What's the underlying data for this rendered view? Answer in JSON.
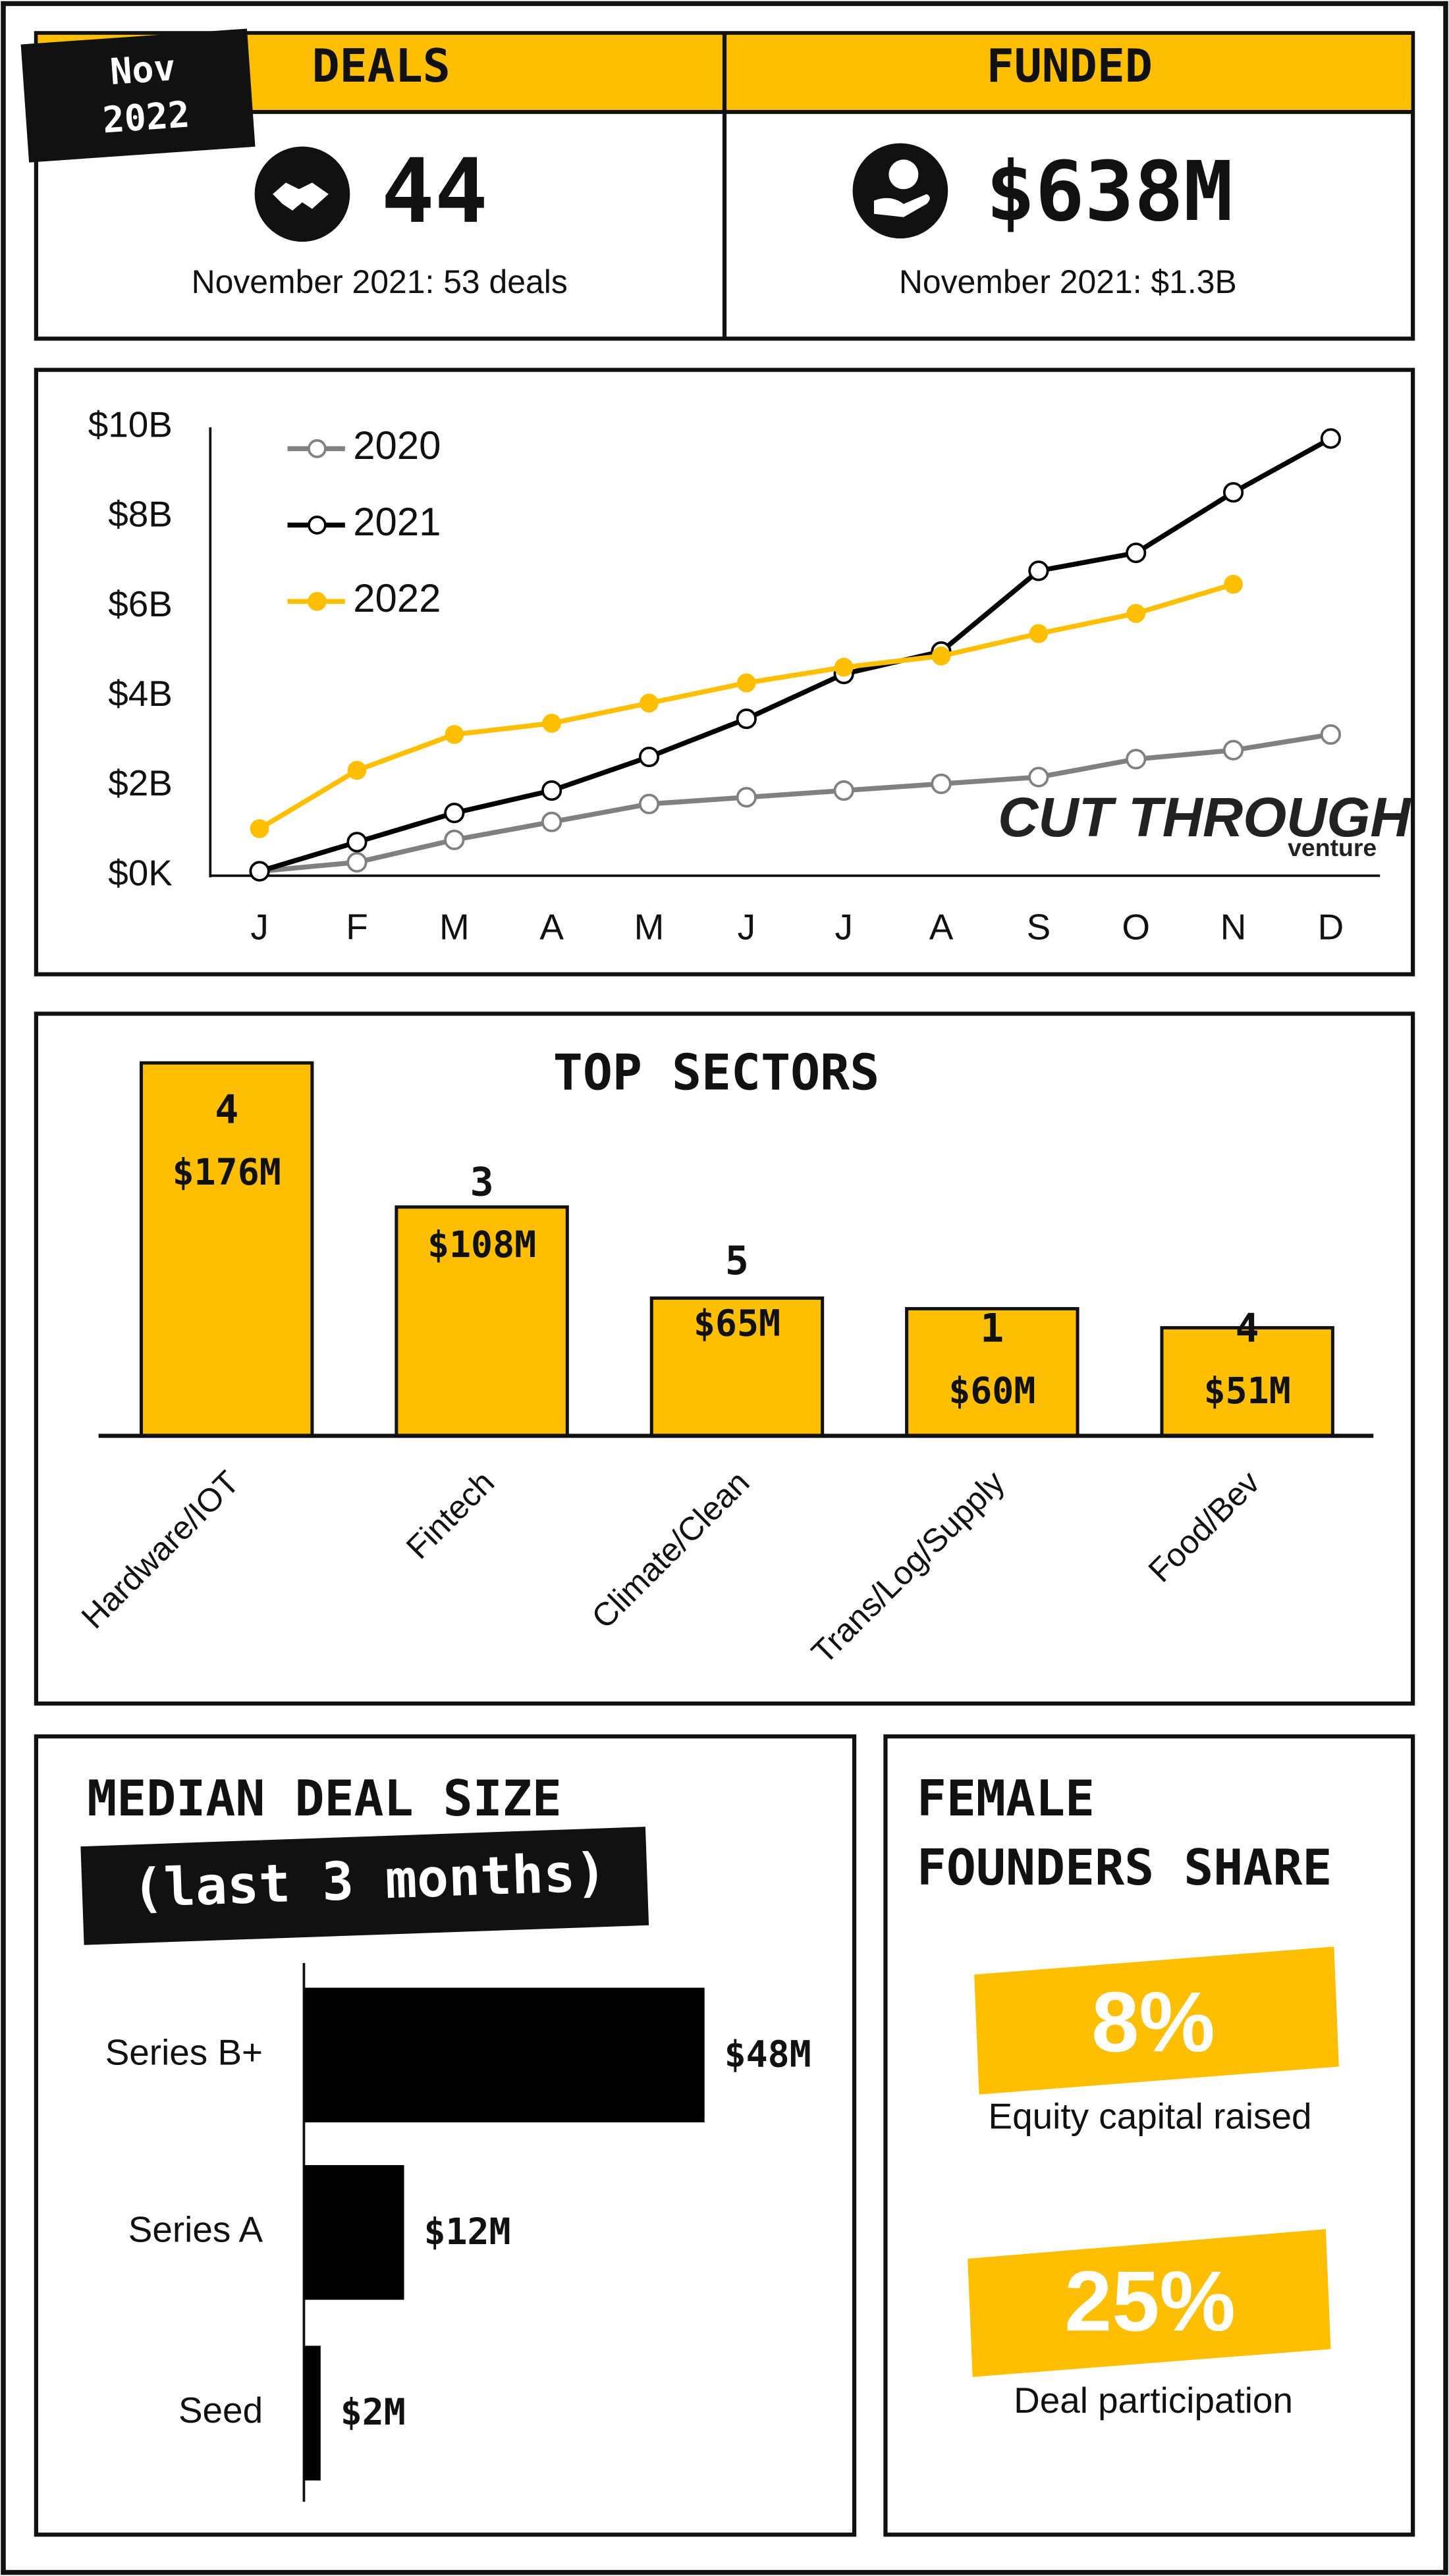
{
  "badge": {
    "month": "Nov",
    "year": "2022"
  },
  "kpis": [
    {
      "title": "DEALS",
      "value": 44,
      "note": "November 2021: 53 deals"
    },
    {
      "title": "FUNDED",
      "value": "$638M",
      "note": "November 2021: $1.3B"
    }
  ],
  "logo": {
    "name": "CUT THROUGH",
    "sub": "venture"
  },
  "chart_data": [
    {
      "type": "line",
      "categories": [
        "J",
        "F",
        "M",
        "A",
        "M",
        "J",
        "J",
        "A",
        "S",
        "O",
        "N",
        "D"
      ],
      "ylim": [
        0,
        10
      ],
      "yticks": [
        {
          "value": 0,
          "label": "$0K"
        },
        {
          "value": 2,
          "label": "$2B"
        },
        {
          "value": 4,
          "label": "$4B"
        },
        {
          "value": 6,
          "label": "$6B"
        },
        {
          "value": 8,
          "label": "$8B"
        },
        {
          "value": 10,
          "label": "$10B"
        }
      ],
      "series": [
        {
          "name": "2020",
          "color": "#808080",
          "marker": "hollow",
          "values": [
            0.1,
            0.3,
            0.8,
            1.2,
            1.6,
            1.75,
            1.9,
            2.05,
            2.2,
            2.6,
            2.8,
            3.15
          ]
        },
        {
          "name": "2021",
          "color": "#000000",
          "marker": "hollow",
          "values": [
            0.1,
            0.75,
            1.4,
            1.9,
            2.65,
            3.5,
            4.5,
            5.0,
            6.8,
            7.2,
            8.55,
            9.75
          ]
        },
        {
          "name": "2022",
          "color": "#fdbf00",
          "marker": "filled",
          "values": [
            1.05,
            2.35,
            3.15,
            3.4,
            3.85,
            4.3,
            4.65,
            4.9,
            5.4,
            5.85,
            6.5,
            null
          ]
        }
      ]
    },
    {
      "type": "bar",
      "title": "TOP SECTORS",
      "categories": [
        "Hardware/IOT",
        "Fintech",
        "Climate/Clean",
        "Trans/Log/Supply",
        "Food/Bev"
      ],
      "values": [
        176,
        108,
        65,
        60,
        51
      ],
      "value_labels": [
        "$176M",
        "$108M",
        "$65M",
        "$60M",
        "$51M"
      ],
      "deals": [
        4,
        3,
        5,
        1,
        4
      ],
      "color": "#fdbf00"
    },
    {
      "type": "hbar",
      "title": "MEDIAN DEAL SIZE",
      "subtitle": "(last 3 months)",
      "categories": [
        "Series B+",
        "Series A",
        "Seed"
      ],
      "values": [
        48,
        12,
        2
      ],
      "value_labels": [
        "$48M",
        "$12M",
        "$2M"
      ],
      "color": "#000000"
    }
  ],
  "female_founders": {
    "title": [
      "FEMALE",
      "FOUNDERS SHARE"
    ],
    "items": [
      {
        "value": "8%",
        "label": "Equity capital raised"
      },
      {
        "value": "25%",
        "label": "Deal participation"
      }
    ]
  }
}
